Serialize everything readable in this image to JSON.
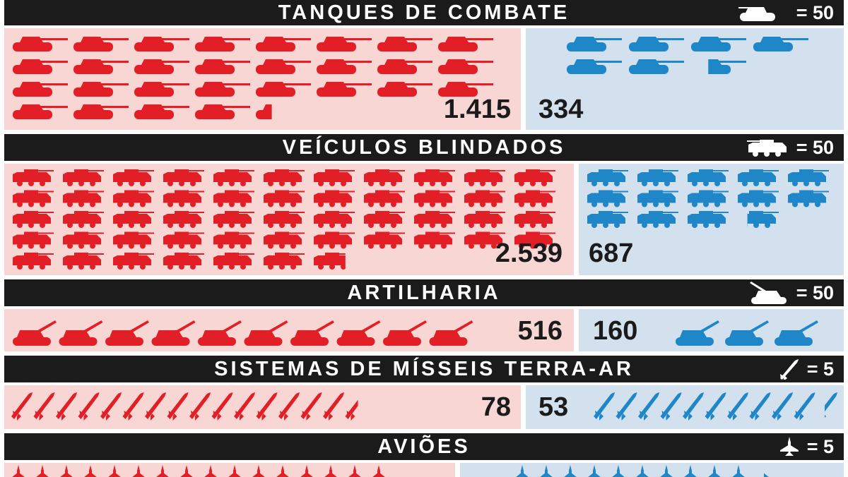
{
  "colors": {
    "russia": "#e21f26",
    "ukraine": "#1f86c8",
    "bar": "#1b1b1b",
    "red_bg": "#f8d6d3",
    "blue_bg": "#d3e1ef"
  },
  "chart_data": [
    {
      "type": "pictogram",
      "title": "TANQUES DE COMBATE",
      "unit_icon": "tank-icon",
      "unit_label": "= 50",
      "unit_value": 50,
      "series": [
        {
          "color": "#e21f26",
          "value": 1415,
          "label": "1.415"
        },
        {
          "color": "#1f86c8",
          "value": 334,
          "label": "334"
        }
      ]
    },
    {
      "type": "pictogram",
      "title": "VEÍCULOS BLINDADOS",
      "unit_icon": "armored-vehicle-icon",
      "unit_label": "= 50",
      "unit_value": 50,
      "series": [
        {
          "color": "#e21f26",
          "value": 2539,
          "label": "2.539"
        },
        {
          "color": "#1f86c8",
          "value": 687,
          "label": "687"
        }
      ]
    },
    {
      "type": "pictogram",
      "title": "ARTILHARIA",
      "unit_icon": "artillery-icon",
      "unit_label": "= 50",
      "unit_value": 50,
      "series": [
        {
          "color": "#e21f26",
          "value": 516,
          "label": "516"
        },
        {
          "color": "#1f86c8",
          "value": 160,
          "label": "160"
        }
      ]
    },
    {
      "type": "pictogram",
      "title": "SISTEMAS DE MÍSSEIS TERRA-AR",
      "unit_icon": "missile-icon",
      "unit_label": "= 5",
      "unit_value": 5,
      "series": [
        {
          "color": "#e21f26",
          "value": 78,
          "label": "78"
        },
        {
          "color": "#1f86c8",
          "value": 53,
          "label": "53"
        }
      ]
    },
    {
      "type": "pictogram",
      "title": "AVIÕES",
      "unit_icon": "aircraft-icon",
      "unit_label": "= 5",
      "unit_value": 5,
      "series": [
        {
          "color": "#e21f26",
          "value": 80
        },
        {
          "color": "#1f86c8",
          "value": 52
        }
      ]
    }
  ]
}
